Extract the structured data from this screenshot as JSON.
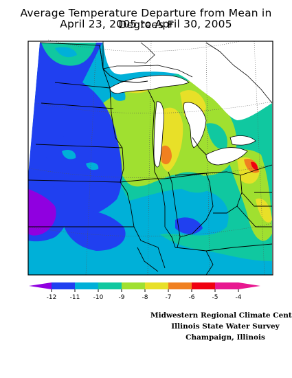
{
  "title_line1": "Average Temperature Departure from Mean in Degrees F",
  "title_line2": "April 23, 2005 to April 30, 2005",
  "legend": {
    "ticks": [
      "-12",
      "-11",
      "-10",
      "-9",
      "-8",
      "-7",
      "-6",
      "-5",
      "-4"
    ],
    "colors": [
      "#9000e0",
      "#2040f0",
      "#00b0d8",
      "#10c8a0",
      "#a0e030",
      "#e8e028",
      "#f08020",
      "#f00010",
      "#e81890"
    ]
  },
  "credits": {
    "line1": "Midwestern Regional Climate Center",
    "line2": "Illinois State Water Survey",
    "line3": "Champaign, Illinois"
  }
}
